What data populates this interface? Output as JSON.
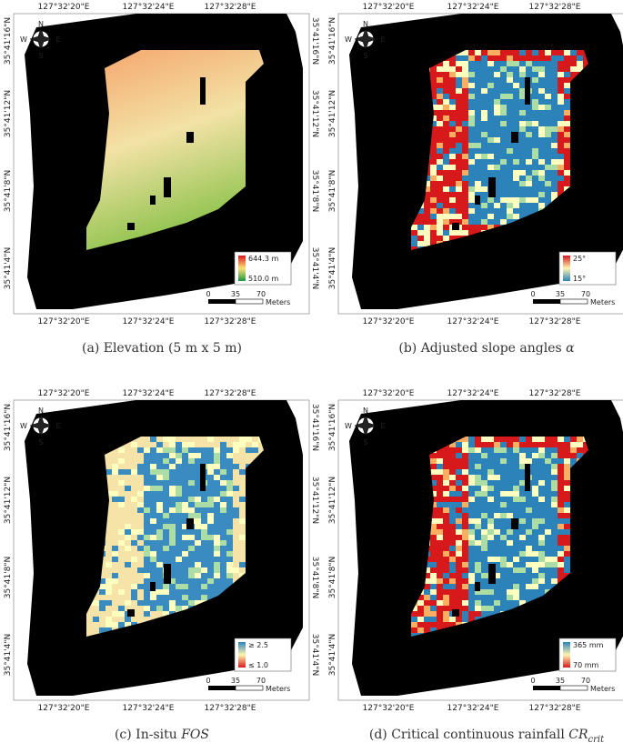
{
  "panels": [
    {
      "caption": {
        "text": "(a) Elevation (5 m x 5 m)"
      },
      "top_labels": [
        "127°32'20\"E",
        "127°32'24\"E",
        "127°32'28\"E"
      ],
      "bottom_labels": [
        "127°32'20\"E",
        "127°32'24\"E",
        "127°32'28\"E"
      ],
      "left_labels": [
        "35°41'16\"N",
        "35°41'12\"N",
        "35°41'8\"N",
        "35°41'4\"N"
      ],
      "right_labels": [
        "35°41'16\"N",
        "35°41'12\"N",
        "35°41'8\"N",
        "35°41'4\"N"
      ],
      "compass": [
        "N",
        "S",
        "W",
        "E"
      ],
      "legend": [
        "644.3 m",
        "510.0 m"
      ],
      "scale": [
        "0",
        "35",
        "70",
        "Meters"
      ]
    },
    {
      "caption": {
        "text": "(b) Adjusted slope angles ",
        "math": "α"
      },
      "top_labels": [
        "127°32'20\"E",
        "127°32'24\"E",
        "127°32'28\"E"
      ],
      "bottom_labels": [
        "127°32'20\"E",
        "127°32'24\"E",
        "127°32'28\"E"
      ],
      "left_labels": [
        "35°41'16\"N",
        "35°41'12\"N",
        "35°41'8\"N",
        "35°41'4\"N"
      ],
      "right_labels": [
        "35°41'16\"N",
        "35°41'12\"N",
        "35°41'8\"N",
        "35°41'4\"N"
      ],
      "compass": [
        "N",
        "S",
        "W",
        "E"
      ],
      "legend": [
        "25°",
        "15°"
      ],
      "scale": [
        "0",
        "35",
        "70",
        "Meters"
      ]
    },
    {
      "caption": {
        "text": "(c) In-situ ",
        "math": "FOS"
      },
      "top_labels": [
        "127°32'20\"E",
        "127°32'24\"E",
        "127°32'28\"E"
      ],
      "bottom_labels": [
        "127°32'20\"E",
        "127°32'24\"E",
        "127°32'28\"E"
      ],
      "left_labels": [
        "35°41'16\"N",
        "35°41'12\"N",
        "35°41'8\"N",
        "35°41'4\"N"
      ],
      "right_labels": [
        "35°41'16\"N",
        "35°41'12\"N",
        "35°41'8\"N",
        "35°41'4\"N"
      ],
      "compass": [
        "N",
        "S",
        "W",
        "E"
      ],
      "legend": [
        "≥ 2.5",
        "≤ 1.0"
      ],
      "scale": [
        "0",
        "35",
        "70",
        "Meters"
      ]
    },
    {
      "caption": {
        "text": "(d) Critical continuous rainfall ",
        "math": "CR",
        "sub": "crit"
      },
      "top_labels": [
        "127°32'20\"E",
        "127°32'24\"E",
        "127°32'28\"E"
      ],
      "bottom_labels": [
        "127°32'20\"E",
        "127°32'24\"E",
        "127°32'28\"E"
      ],
      "left_labels": [
        "35°41'16\"N",
        "35°41'12\"N",
        "35°41'8\"N",
        "35°41'4\"N"
      ],
      "right_labels": [
        "35°41'16\"N",
        "35°41'12\"N",
        "35°41'8\"N",
        "35°41'4\"N"
      ],
      "compass": [
        "N",
        "S",
        "W",
        "E"
      ],
      "legend": [
        "365 mm",
        "70 mm"
      ],
      "scale": [
        "0",
        "35",
        "70",
        "Meters"
      ]
    }
  ]
}
